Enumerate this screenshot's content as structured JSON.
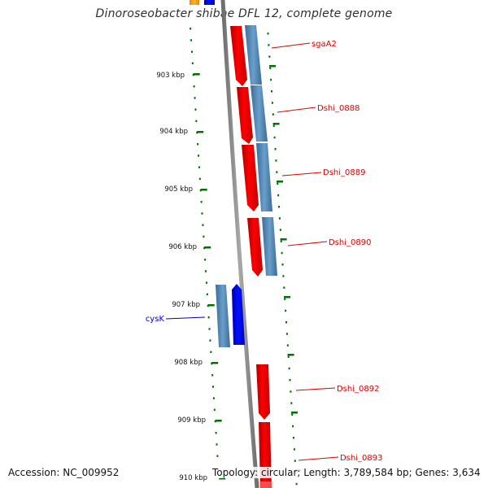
{
  "title": "Dinoroseobacter shibae DFL 12, complete genome",
  "footer": {
    "accession": "Accession: NC_009952",
    "topology": "Topology: circular; Length: 3,789,584 bp; Genes: 3,634"
  },
  "ruler": {
    "ticks": [
      {
        "kbp": 903,
        "label": "903 kbp"
      },
      {
        "kbp": 904,
        "label": "904 kbp"
      },
      {
        "kbp": 905,
        "label": "905 kbp"
      },
      {
        "kbp": 906,
        "label": "906 kbp"
      },
      {
        "kbp": 907,
        "label": "907 kbp"
      },
      {
        "kbp": 908,
        "label": "908 kbp"
      },
      {
        "kbp": 909,
        "label": "909 kbp"
      },
      {
        "kbp": 910,
        "label": "910 kbp"
      }
    ]
  },
  "gene_labels": [
    {
      "name": "sgaA2",
      "color": "#e00000"
    },
    {
      "name": "Dshi_0888",
      "color": "#e00000"
    },
    {
      "name": "Dshi_0889",
      "color": "#e00000"
    },
    {
      "name": "Dshi_0890",
      "color": "#e00000"
    },
    {
      "name": "cysK",
      "color": "#0000cc"
    },
    {
      "name": "Dshi_0892",
      "color": "#e00000"
    },
    {
      "name": "Dshi_0893",
      "color": "#e00000"
    }
  ],
  "colors": {
    "cds_outer": "#ff0000",
    "gene_outer": "#4682b4",
    "cds_inner": "#0000ff",
    "backbone": "#808080",
    "ticks": "#007000",
    "top_cut_feature": "#ffa500"
  }
}
